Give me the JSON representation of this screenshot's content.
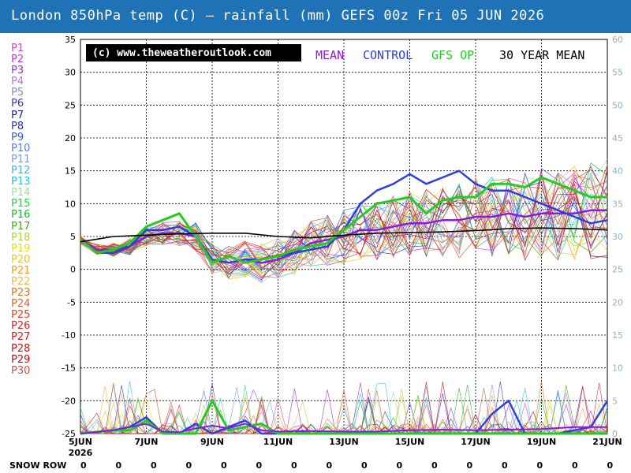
{
  "title": "London 850hPa temp (C) — rainfall (mm)   GEFS 00z Fri 05 JUN 2026",
  "colors": {
    "header_bg": "#1f72b5",
    "mean": "#8a1be0",
    "control": "#2e3fe0",
    "gfs_op": "#22cc22",
    "climate_mean": "#000000",
    "right_axis": "#8fb3d0"
  },
  "legend": {
    "credit": "(c) www.theweatheroutlook.com",
    "mean": "MEAN",
    "control": "CONTROL",
    "gfs_op": "GFS OP",
    "thirty_year": "30 YEAR MEAN"
  },
  "members": [
    {
      "label": "P1",
      "color": "#e040c8"
    },
    {
      "label": "P2",
      "color": "#c830d8"
    },
    {
      "label": "P3",
      "color": "#9a2cd0"
    },
    {
      "label": "P4",
      "color": "#b07ad8"
    },
    {
      "label": "P5",
      "color": "#9a7ad0"
    },
    {
      "label": "P6",
      "color": "#3a3ab0"
    },
    {
      "label": "P7",
      "color": "#2020a8"
    },
    {
      "label": "P8",
      "color": "#2a2ad8"
    },
    {
      "label": "P9",
      "color": "#3a5ad8"
    },
    {
      "label": "P10",
      "color": "#5a7ae0"
    },
    {
      "label": "P11",
      "color": "#7a9ae0"
    },
    {
      "label": "P12",
      "color": "#38b8e0"
    },
    {
      "label": "P13",
      "color": "#20c8e8"
    },
    {
      "label": "P14",
      "color": "#a0e0a0"
    },
    {
      "label": "P15",
      "color": "#30c850"
    },
    {
      "label": "P16",
      "color": "#20b830"
    },
    {
      "label": "P17",
      "color": "#40a820"
    },
    {
      "label": "P18",
      "color": "#b0d040"
    },
    {
      "label": "P19",
      "color": "#e0e020"
    },
    {
      "label": "P20",
      "color": "#f0c030"
    },
    {
      "label": "P21",
      "color": "#f0a020"
    },
    {
      "label": "P22",
      "color": "#f0b848"
    },
    {
      "label": "P23",
      "color": "#e87020"
    },
    {
      "label": "P24",
      "color": "#e86030"
    },
    {
      "label": "P25",
      "color": "#e04020"
    },
    {
      "label": "P26",
      "color": "#e02020"
    },
    {
      "label": "P27",
      "color": "#d81818"
    },
    {
      "label": "P28",
      "color": "#c81010"
    },
    {
      "label": "P29",
      "color": "#b81010"
    },
    {
      "label": "P30",
      "color": "#c85050"
    }
  ],
  "snow_row": {
    "label": "SNOW ROW",
    "values": [
      "0",
      "0",
      "0",
      "0",
      "0",
      "0",
      "0",
      "0",
      "0",
      "0",
      "0",
      "0",
      "0",
      "0",
      "0",
      "0"
    ]
  },
  "chart_data": {
    "type": "line",
    "title": "London 850hPa temp (C) — rainfall (mm)",
    "subtitle": "GEFS 00z Fri 05 JUN 2026",
    "x_tick_labels": [
      {
        "day": 0,
        "label": "5JUN",
        "sub": "2026"
      },
      {
        "day": 2,
        "label": "7JUN"
      },
      {
        "day": 4,
        "label": "9JUN"
      },
      {
        "day": 6,
        "label": "11JUN"
      },
      {
        "day": 8,
        "label": "13JUN"
      },
      {
        "day": 10,
        "label": "15JUN"
      },
      {
        "day": 12,
        "label": "17JUN"
      },
      {
        "day": 14,
        "label": "19JUN"
      },
      {
        "day": 16,
        "label": "21JUN"
      }
    ],
    "xlim": [
      0,
      16
    ],
    "ylim": [
      -25,
      35
    ],
    "y_ticks": [
      35,
      30,
      25,
      20,
      15,
      10,
      5,
      0,
      -5,
      -10,
      -15,
      -20,
      -25
    ],
    "y2lim": [
      0,
      60
    ],
    "y2_ticks": [
      60,
      55,
      50,
      45,
      40,
      35,
      30,
      25,
      20,
      15,
      10,
      5,
      0
    ],
    "grid": true,
    "legend_position": "top",
    "temperature_series": [
      {
        "name": "MEAN",
        "color": "#8a1be0",
        "width": 2.5,
        "x": [
          0,
          0.5,
          1,
          1.5,
          2,
          2.5,
          3,
          3.5,
          4,
          4.5,
          5,
          5.5,
          6,
          6.5,
          7,
          7.5,
          8,
          8.5,
          9,
          9.5,
          10,
          10.5,
          11,
          11.5,
          12,
          12.5,
          13,
          13.5,
          14,
          14.5,
          15,
          15.5,
          16
        ],
        "y": [
          4.5,
          3,
          3,
          3.5,
          5,
          5.5,
          5.5,
          5,
          1.5,
          1,
          1.5,
          1,
          1.5,
          2.5,
          4,
          4.5,
          5,
          6,
          6,
          6.5,
          7,
          7,
          7.5,
          7.5,
          8,
          8,
          8.5,
          8,
          8.5,
          8.5,
          8.5,
          9,
          9
        ]
      },
      {
        "name": "CONTROL",
        "color": "#2e3fe0",
        "width": 2.5,
        "x": [
          0,
          0.5,
          1,
          1.5,
          2,
          2.5,
          3,
          3.5,
          4,
          4.5,
          5,
          5.5,
          6,
          6.5,
          7,
          7.5,
          8,
          8.5,
          9,
          9.5,
          10,
          10.5,
          11,
          11.5,
          12,
          12.5,
          13,
          13.5,
          14,
          14.5,
          15,
          15.5,
          16
        ],
        "y": [
          4.5,
          2.5,
          2.5,
          3.5,
          6,
          6,
          6.5,
          5,
          1.5,
          1,
          1.5,
          1.5,
          2,
          2.5,
          3,
          3.5,
          6,
          10,
          12,
          13,
          14.5,
          13,
          14,
          15,
          13,
          12,
          12,
          11,
          10,
          9,
          8,
          7,
          7.5
        ]
      },
      {
        "name": "GFS OP",
        "color": "#22cc22",
        "width": 3,
        "x": [
          0,
          0.5,
          1,
          1.5,
          2,
          2.5,
          3,
          3.5,
          4,
          4.5,
          5,
          5.5,
          6,
          6.5,
          7,
          7.5,
          8,
          8.5,
          9,
          9.5,
          10,
          10.5,
          11,
          11.5,
          12,
          12.5,
          13,
          13.5,
          14,
          14.5,
          15,
          15.5,
          16
        ],
        "y": [
          4.5,
          2.5,
          3,
          4,
          6.5,
          7.5,
          8.5,
          5,
          1,
          2,
          1,
          1.5,
          2,
          3,
          3.5,
          4,
          6,
          8,
          10,
          10.5,
          11,
          8.5,
          10.5,
          11,
          11,
          13,
          13,
          12.5,
          14,
          13,
          12,
          11,
          11
        ]
      },
      {
        "name": "30 YEAR MEAN",
        "color": "#000000",
        "width": 1.6,
        "x": [
          0,
          1,
          2,
          3,
          4,
          5,
          6,
          7,
          8,
          9,
          10,
          11,
          12,
          13,
          14,
          15,
          16
        ],
        "y": [
          4.2,
          5,
          5.2,
          5.4,
          5.5,
          5.5,
          5,
          4.8,
          5.2,
          5.5,
          5.6,
          5.7,
          5.9,
          6.2,
          6.3,
          6.2,
          6
        ]
      }
    ],
    "rainfall_series": [
      {
        "name": "CONTROL",
        "color": "#2e3fe0",
        "width": 2.5,
        "x": [
          0,
          1,
          1.5,
          2,
          2.5,
          3,
          3.5,
          4,
          4.5,
          5,
          5.5,
          6,
          7,
          8,
          9,
          10,
          11,
          12,
          12.5,
          13,
          13.5,
          14,
          14.5,
          15,
          15.5,
          16
        ],
        "y": [
          0,
          0.5,
          1,
          2.5,
          0,
          0,
          1.5,
          0,
          1,
          2,
          0,
          0,
          0,
          0,
          0,
          0,
          0,
          0,
          3,
          5,
          0,
          0,
          0,
          0.5,
          1,
          5
        ]
      },
      {
        "name": "GFS OP",
        "color": "#22cc22",
        "width": 3,
        "x": [
          0,
          1,
          1.5,
          2,
          2.5,
          3,
          3.5,
          4,
          4.5,
          5,
          5.5,
          6,
          7,
          8,
          9,
          10,
          11,
          12,
          13,
          14,
          15,
          16
        ],
        "y": [
          0,
          0.5,
          0.5,
          2,
          0,
          0,
          0,
          5,
          0.5,
          1,
          1.5,
          0,
          0,
          0,
          0,
          0,
          0,
          0,
          0,
          0,
          0,
          0
        ]
      },
      {
        "name": "MEAN",
        "color": "#8a1be0",
        "width": 2,
        "x": [
          0,
          1,
          1.5,
          2,
          2.5,
          3,
          3.5,
          4,
          4.5,
          5,
          5.5,
          6,
          7,
          8,
          9,
          10,
          11,
          12,
          13,
          14,
          15,
          16
        ],
        "y": [
          0,
          0.5,
          1,
          1.5,
          0.3,
          0.2,
          0.8,
          1.2,
          0.8,
          1.5,
          0.5,
          0.3,
          0.4,
          0.3,
          0.3,
          0.5,
          0.6,
          0.5,
          0.6,
          0.7,
          1,
          1
        ]
      }
    ]
  }
}
